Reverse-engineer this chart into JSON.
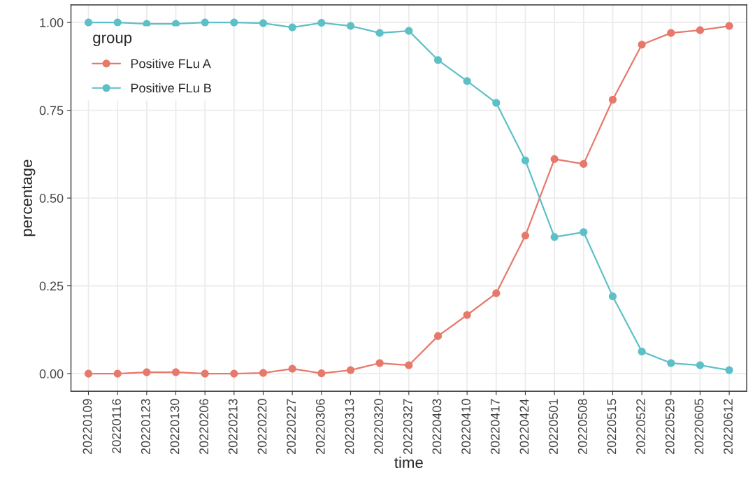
{
  "chart_data": {
    "type": "line",
    "xlabel": "time",
    "ylabel": "percentage",
    "legend_title": "group",
    "categories": [
      "20220109",
      "20220116",
      "20220123",
      "20220130",
      "20220206",
      "20220213",
      "20220220",
      "20220227",
      "20220306",
      "20220313",
      "20220320",
      "20220327",
      "20220403",
      "20220410",
      "20220417",
      "20220424",
      "20220501",
      "20220508",
      "20220515",
      "20220522",
      "20220529",
      "20220605",
      "20220612"
    ],
    "series": [
      {
        "name": "Positive FLu A",
        "color": "#e7796c",
        "values": [
          0.0,
          0.0,
          0.004,
          0.004,
          0.0,
          0.0,
          0.002,
          0.014,
          0.001,
          0.01,
          0.03,
          0.024,
          0.107,
          0.167,
          0.229,
          0.393,
          0.611,
          0.597,
          0.78,
          0.937,
          0.97,
          0.978,
          0.99
        ]
      },
      {
        "name": "Positive FLu B",
        "color": "#5ec0c7",
        "values": [
          1.0,
          1.0,
          0.996,
          0.996,
          1.0,
          1.0,
          0.998,
          0.986,
          0.999,
          0.99,
          0.97,
          0.976,
          0.893,
          0.833,
          0.771,
          0.607,
          0.389,
          0.403,
          0.22,
          0.063,
          0.03,
          0.024,
          0.01
        ]
      }
    ],
    "ylim": [
      -0.05,
      1.05
    ],
    "yticks": [
      {
        "value": 0,
        "label": "0.00"
      },
      {
        "value": 0.25,
        "label": "0.25"
      },
      {
        "value": 0.5,
        "label": "0.50"
      },
      {
        "value": 0.75,
        "label": "0.75"
      },
      {
        "value": 1,
        "label": "1.00"
      }
    ],
    "grid": true,
    "legend": "top left",
    "marker": "circle",
    "line_style": "solid"
  }
}
